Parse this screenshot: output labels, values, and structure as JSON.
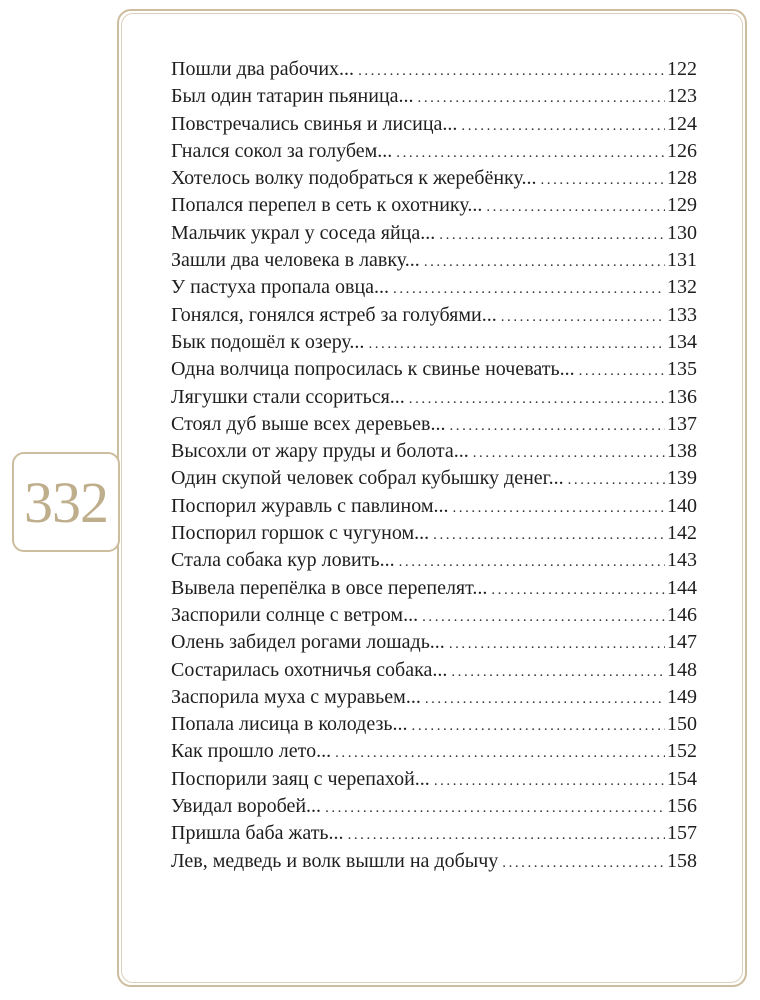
{
  "page_number": "332",
  "colors": {
    "frame": "#cdbd9f",
    "page_number": "#bfae8c",
    "text": "#1e1e1e"
  },
  "toc": [
    {
      "title": "Пошли два рабочих...",
      "page": "122"
    },
    {
      "title": "Был один татарин пьяница...",
      "page": "123"
    },
    {
      "title": "Повстречались свинья и лисица...",
      "page": "124"
    },
    {
      "title": "Гнался сокол за голубем...",
      "page": "126"
    },
    {
      "title": "Хотелось волку подобраться к жеребёнку...",
      "page": "128"
    },
    {
      "title": "Попался перепел в сеть к охотнику...",
      "page": "129"
    },
    {
      "title": "Мальчик украл у соседа яйца...",
      "page": "130"
    },
    {
      "title": "Зашли два человека в лавку...",
      "page": "131"
    },
    {
      "title": "У пастуха пропала овца...",
      "page": "132"
    },
    {
      "title": "Гонялся, гонялся ястреб за голубями...",
      "page": "133"
    },
    {
      "title": "Бык подошёл к озеру...",
      "page": "134"
    },
    {
      "title": "Одна волчица попросилась к свинье ночевать...",
      "page": "135"
    },
    {
      "title": "Лягушки стали ссориться...",
      "page": "136"
    },
    {
      "title": "Стоял дуб выше всех деревьев...",
      "page": "137"
    },
    {
      "title": "Высохли от жару пруды и болота...",
      "page": "138"
    },
    {
      "title": "Один скупой человек собрал кубышку денег...",
      "page": "139"
    },
    {
      "title": "Поспорил журавль с павлином...",
      "page": "140"
    },
    {
      "title": "Поспорил горшок с чугуном...",
      "page": "142"
    },
    {
      "title": "Стала собака кур ловить...",
      "page": "143"
    },
    {
      "title": "Вывела перепёлка в овсе перепелят...",
      "page": "144"
    },
    {
      "title": "Заспорили солнце с ветром...",
      "page": "146"
    },
    {
      "title": "Олень забидел рогами лошадь...",
      "page": "147"
    },
    {
      "title": "Состарилась охотничья собака...",
      "page": "148"
    },
    {
      "title": "Заспорила муха с муравьем...",
      "page": "149"
    },
    {
      "title": "Попала лисица в колодезь...",
      "page": "150"
    },
    {
      "title": "Как прошло лето...",
      "page": "152"
    },
    {
      "title": "Поспорили заяц с черепахой...",
      "page": "154"
    },
    {
      "title": "Увидал воробей...",
      "page": "156"
    },
    {
      "title": "Пришла баба жать...",
      "page": "157"
    },
    {
      "title": "Лев, медведь и волк вышли на добычу",
      "page": "158"
    }
  ]
}
